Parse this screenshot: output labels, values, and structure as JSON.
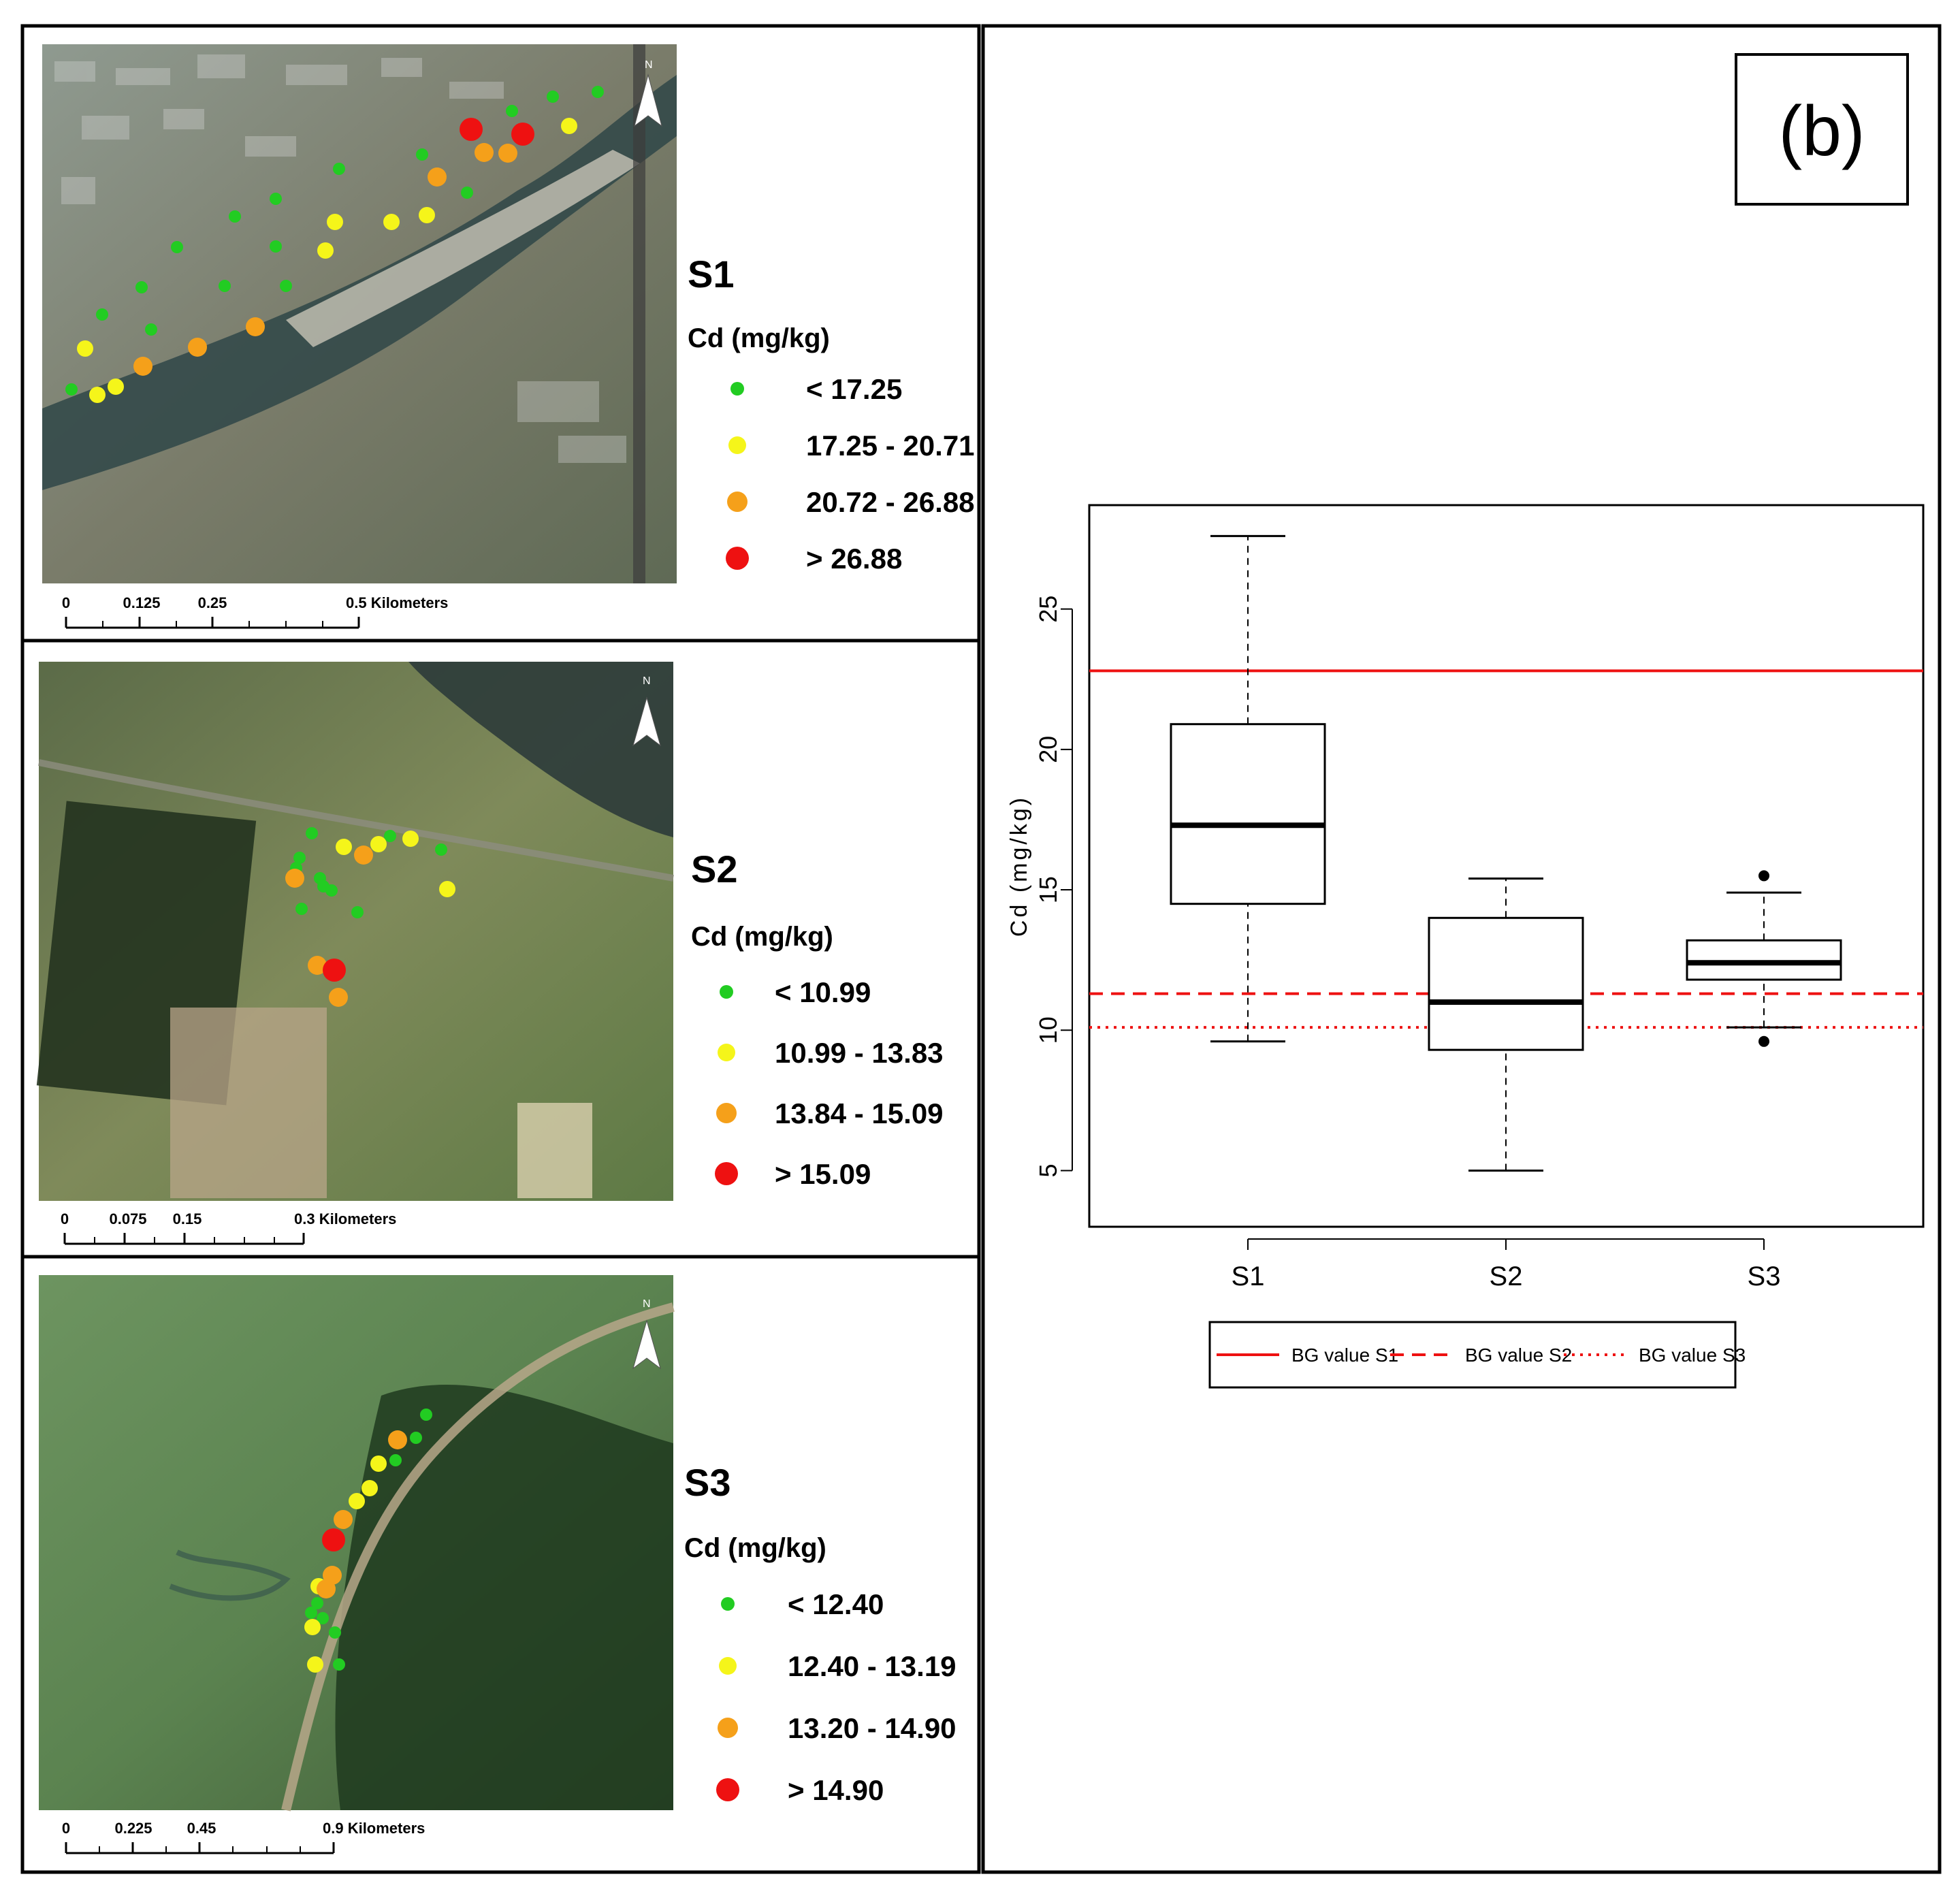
{
  "panel_label": "(b)",
  "maps": [
    {
      "site": "S1",
      "unit": "Cd (mg/kg)",
      "classes": [
        {
          "label": "< 17.25",
          "color": "#22cc22"
        },
        {
          "label": "17.25 - 20.71",
          "color": "#f5f51a"
        },
        {
          "label": "20.72 - 26.88",
          "color": "#f5a01a"
        },
        {
          "label": "> 26.88",
          "color": "#ee1111"
        }
      ],
      "scale_ticks": [
        "0",
        "0.125",
        "0.25",
        "0.5 Kilometers"
      ],
      "north": "N"
    },
    {
      "site": "S2",
      "unit": "Cd (mg/kg)",
      "classes": [
        {
          "label": "< 10.99",
          "color": "#22cc22"
        },
        {
          "label": "10.99 - 13.83",
          "color": "#f5f51a"
        },
        {
          "label": "13.84 - 15.09",
          "color": "#f5a01a"
        },
        {
          "label": "> 15.09",
          "color": "#ee1111"
        }
      ],
      "scale_ticks": [
        "0",
        "0.075",
        "0.15",
        "0.3 Kilometers"
      ],
      "north": "N"
    },
    {
      "site": "S3",
      "unit": "Cd (mg/kg)",
      "classes": [
        {
          "label": "< 12.40",
          "color": "#22cc22"
        },
        {
          "label": "12.40 - 13.19",
          "color": "#f5f51a"
        },
        {
          "label": "13.20 - 14.90",
          "color": "#f5a01a"
        },
        {
          "label": "> 14.90",
          "color": "#ee1111"
        }
      ],
      "scale_ticks": [
        "0",
        "0.225",
        "0.45",
        "0.9 Kilometers"
      ],
      "north": "N"
    }
  ],
  "chart_data": {
    "type": "boxplot",
    "title": "",
    "xlabel": "",
    "ylabel": "Cd (mg/kg)",
    "ylim": [
      3.0,
      28.7
    ],
    "yticks": [
      5,
      10,
      15,
      20,
      25
    ],
    "categories": [
      "S1",
      "S2",
      "S3"
    ],
    "boxes": [
      {
        "name": "S1",
        "min": 9.6,
        "q1": 14.5,
        "median": 17.3,
        "q3": 20.9,
        "max": 27.6,
        "outliers": []
      },
      {
        "name": "S2",
        "min": 5.0,
        "q1": 9.3,
        "median": 11.0,
        "q3": 14.0,
        "max": 15.4,
        "outliers": []
      },
      {
        "name": "S3",
        "min": 10.1,
        "q1": 11.8,
        "median": 12.4,
        "q3": 13.2,
        "max": 14.9,
        "outliers": [
          15.5,
          9.6
        ]
      }
    ],
    "reference_lines": [
      {
        "name": "BG value S1",
        "value": 22.8,
        "style": "solid",
        "color": "#ee1111"
      },
      {
        "name": "BG value S2",
        "value": 11.3,
        "style": "dashed",
        "color": "#ee1111"
      },
      {
        "name": "BG value S3",
        "value": 10.1,
        "style": "dotted",
        "color": "#ee1111"
      }
    ],
    "grid": false,
    "legend_position": "bottom"
  }
}
